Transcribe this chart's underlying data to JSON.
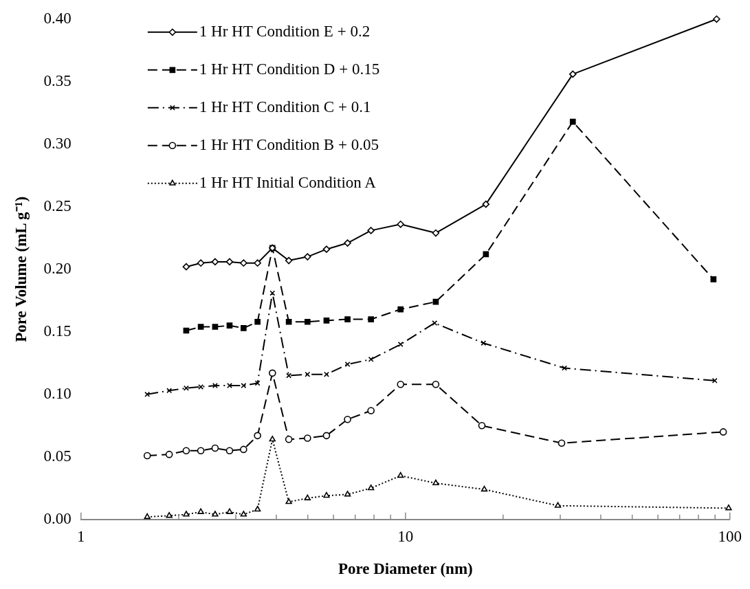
{
  "chart_data": {
    "type": "line",
    "xlabel": "Pore Diameter (nm)",
    "ylabel": "Pore Volume (mL g⁻¹)",
    "log": "x",
    "grid": false,
    "legend": "top left",
    "xlim": [
      1,
      100
    ],
    "xticks": [
      1,
      {
        "value": 2,
        "label": null
      },
      {
        "value": 3,
        "label": null
      },
      {
        "value": 4,
        "label": null
      },
      {
        "value": 5,
        "label": null
      },
      {
        "value": 6,
        "label": null
      },
      {
        "value": 7,
        "label": null
      },
      {
        "value": 8,
        "label": null
      },
      {
        "value": 9,
        "label": null
      },
      10,
      {
        "value": 20,
        "label": null
      },
      {
        "value": 30,
        "label": null
      },
      {
        "value": 40,
        "label": null
      },
      {
        "value": 50,
        "label": null
      },
      {
        "value": 60,
        "label": null
      },
      {
        "value": 70,
        "label": null
      },
      {
        "value": 80,
        "label": null
      },
      {
        "value": 90,
        "label": null
      },
      100
    ],
    "ylim": [
      0,
      0.4
    ],
    "yticks": [
      {
        "value": 0,
        "label": "0.00"
      },
      0.05,
      {
        "value": 0.1,
        "label": "0.10"
      },
      0.15,
      {
        "value": 0.2,
        "label": "0.20"
      },
      0.25,
      {
        "value": 0.3,
        "label": "0.30"
      },
      0.35,
      {
        "value": 0.4,
        "label": "0.40"
      }
    ],
    "series": [
      {
        "name": "1 Hr HT Condition E + 0.2",
        "color": "#000000",
        "marker": "diamond",
        "line_style": "solid",
        "x": [
          2.11,
          2.34,
          2.59,
          2.87,
          3.17,
          3.5,
          3.89,
          4.37,
          4.99,
          5.71,
          6.63,
          7.83,
          9.66,
          12.4,
          17.7,
          32.8,
          91.0
        ],
        "values": [
          0.202,
          0.205,
          0.206,
          0.206,
          0.205,
          0.205,
          0.217,
          0.207,
          0.21,
          0.216,
          0.221,
          0.231,
          0.236,
          0.229,
          0.252,
          0.356,
          0.4
        ]
      },
      {
        "name": "1 Hr HT Condition D + 0.15",
        "color": "#000000",
        "marker": "square",
        "line_style": "dashed",
        "x": [
          2.11,
          2.34,
          2.59,
          2.87,
          3.17,
          3.5,
          3.89,
          4.37,
          4.99,
          5.71,
          6.63,
          7.83,
          9.66,
          12.4,
          17.7,
          32.8,
          89.0
        ],
        "values": [
          0.151,
          0.154,
          0.154,
          0.155,
          0.153,
          0.158,
          0.217,
          0.158,
          0.158,
          0.159,
          0.16,
          0.16,
          0.168,
          0.174,
          0.212,
          0.318,
          0.192
        ]
      },
      {
        "name": "1 Hr HT Condition C + 0.1",
        "color": "#000000",
        "marker": "cross",
        "line_style": "dashdot",
        "x": [
          1.6,
          1.87,
          2.11,
          2.34,
          2.59,
          2.87,
          3.17,
          3.5,
          3.89,
          4.37,
          4.99,
          5.71,
          6.63,
          7.83,
          9.66,
          12.3,
          17.4,
          30.9,
          89.8
        ],
        "values": [
          0.1,
          0.103,
          0.105,
          0.106,
          0.107,
          0.107,
          0.107,
          0.109,
          0.181,
          0.115,
          0.116,
          0.116,
          0.124,
          0.128,
          0.14,
          0.157,
          0.141,
          0.121,
          0.111
        ]
      },
      {
        "name": "1 Hr HT Condition B + 0.05",
        "color": "#000000",
        "marker": "circle",
        "line_style": "dashed",
        "x": [
          1.6,
          1.87,
          2.11,
          2.34,
          2.59,
          2.87,
          3.17,
          3.5,
          3.89,
          4.37,
          4.99,
          5.71,
          6.63,
          7.83,
          9.66,
          12.4,
          17.2,
          30.3,
          95.4
        ],
        "values": [
          0.051,
          0.052,
          0.055,
          0.055,
          0.057,
          0.055,
          0.056,
          0.067,
          0.117,
          0.064,
          0.065,
          0.067,
          0.08,
          0.087,
          0.108,
          0.108,
          0.075,
          0.061,
          0.07
        ]
      },
      {
        "name": "1 Hr HT Initial Condition A",
        "color": "#000000",
        "marker": "triangle",
        "line_style": "dotted",
        "x": [
          1.6,
          1.87,
          2.11,
          2.34,
          2.59,
          2.87,
          3.17,
          3.5,
          3.89,
          4.37,
          4.99,
          5.71,
          6.63,
          7.83,
          9.66,
          12.4,
          17.5,
          29.5,
          99.1
        ],
        "values": [
          0.002,
          0.003,
          0.004,
          0.006,
          0.004,
          0.006,
          0.004,
          0.008,
          0.064,
          0.014,
          0.017,
          0.019,
          0.02,
          0.025,
          0.035,
          0.029,
          0.024,
          0.011,
          0.009
        ]
      }
    ]
  }
}
